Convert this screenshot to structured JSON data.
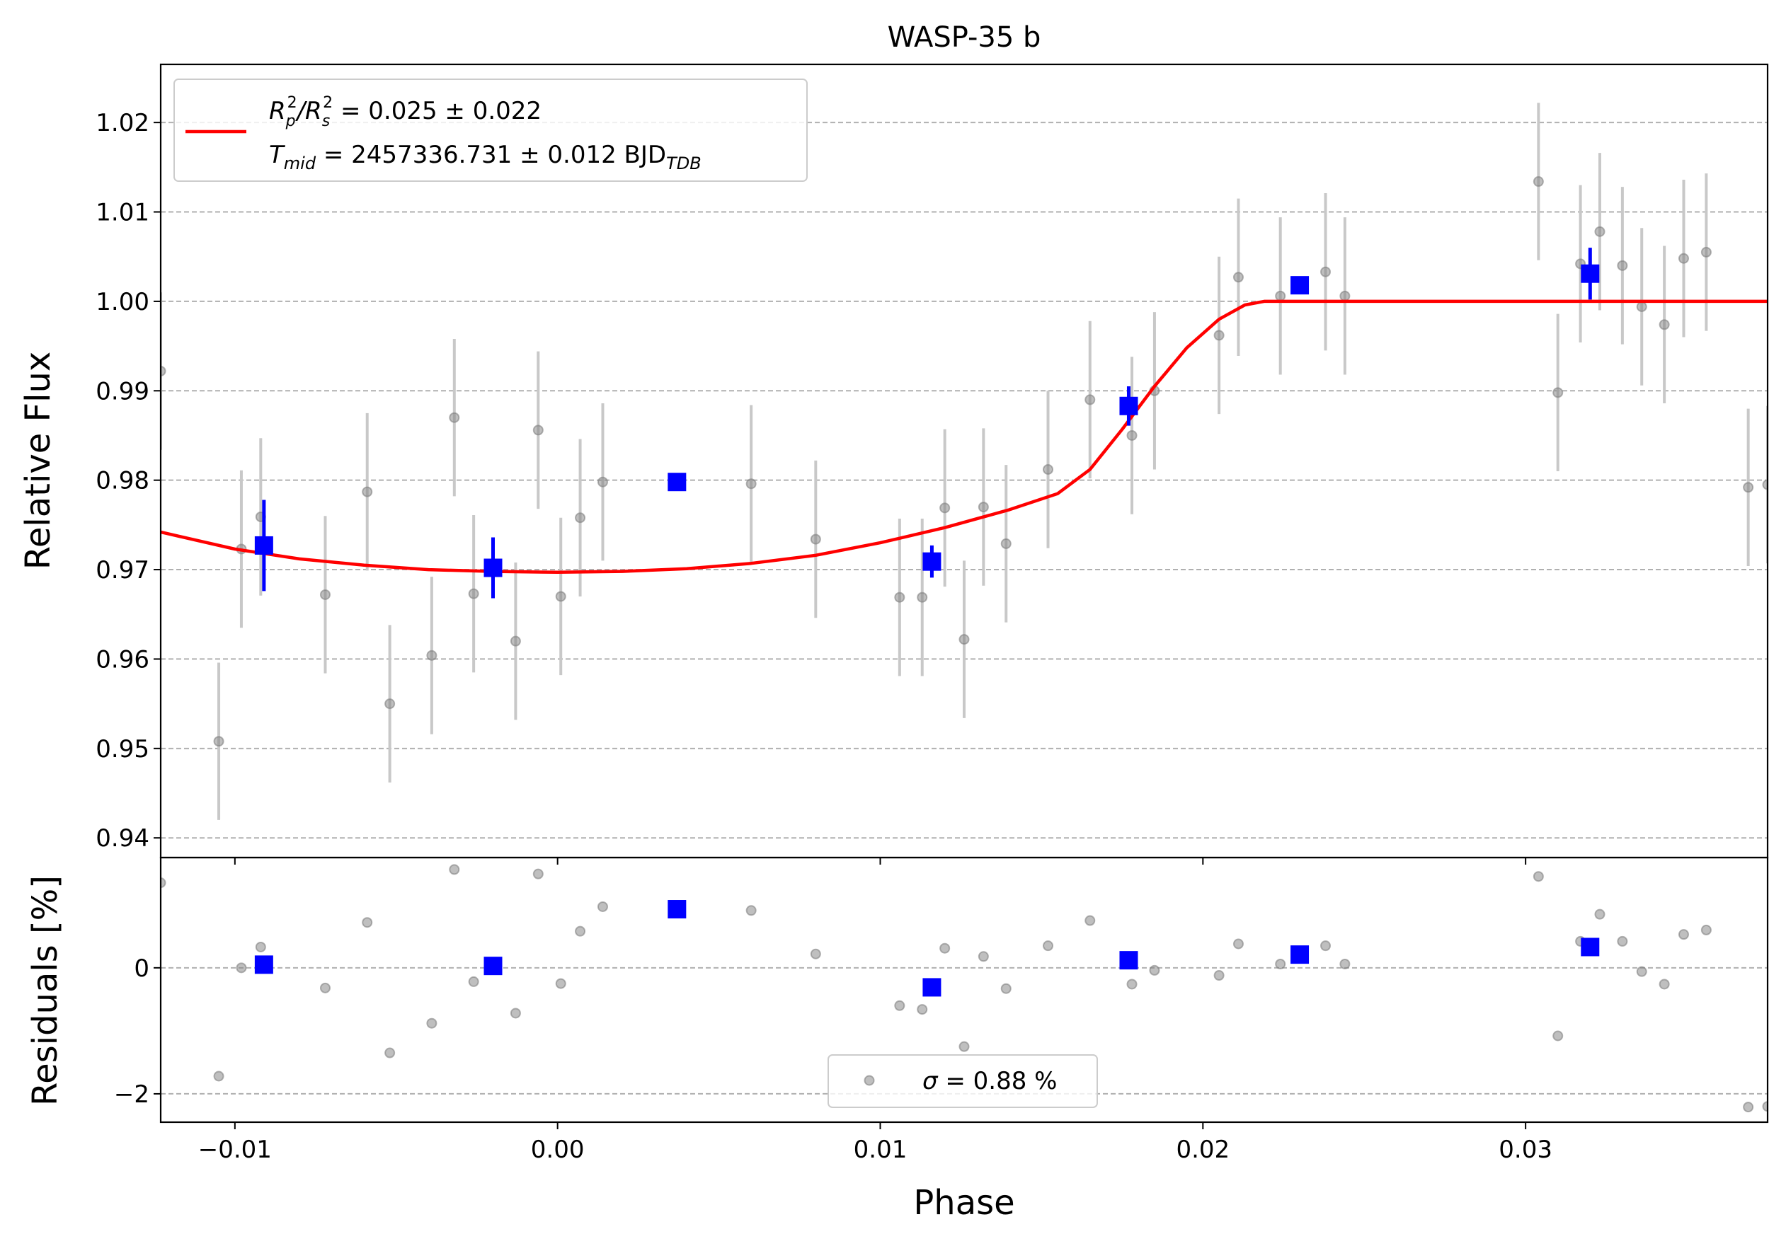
{
  "chart_data": [
    {
      "type": "scatter",
      "title": "WASP-35 b",
      "xlabel": "",
      "ylabel": "Relative Flux",
      "xlim": [
        -0.0123,
        0.0375
      ],
      "ylim": [
        0.9378,
        1.0265
      ],
      "xticks": [
        -0.01,
        0.0,
        0.01,
        0.02,
        0.03
      ],
      "yticks": [
        0.94,
        0.95,
        0.96,
        0.97,
        0.98,
        0.99,
        1.0,
        1.01,
        1.02
      ],
      "ytick_labels": [
        "0.94",
        "0.95",
        "0.96",
        "0.97",
        "0.98",
        "0.99",
        "1.00",
        "1.01",
        "1.02"
      ],
      "grid": "y-dashed",
      "legend_position": "top-left",
      "legend": {
        "line1": {
          "prefix": "R",
          "sub1": "p",
          "sup1": "2",
          "slash": "/R",
          "sub2": "s",
          "sup2": "2",
          "suffix": " = 0.025 ± 0.022"
        },
        "line2": {
          "prefix": "T",
          "sub1": "mid",
          "suffix": " = 2457336.731 ± 0.012 BJD",
          "sub2": "TDB"
        }
      },
      "colors": {
        "data": "#808080",
        "errorbar": "#c8c8c8",
        "model": "#ff0000",
        "binned": "#0000ff"
      },
      "data_points": [
        [
          -0.0123,
          0.9922
        ],
        [
          -0.0105,
          0.9508
        ],
        [
          -0.0098,
          0.9723
        ],
        [
          -0.0092,
          0.9759
        ],
        [
          -0.0072,
          0.9672
        ],
        [
          -0.0059,
          0.9787
        ],
        [
          -0.0052,
          0.955
        ],
        [
          -0.0039,
          0.9604
        ],
        [
          -0.0032,
          0.987
        ],
        [
          -0.0026,
          0.9673
        ],
        [
          -0.0013,
          0.962
        ],
        [
          -0.0006,
          0.9856
        ],
        [
          0.0001,
          0.967
        ],
        [
          0.0007,
          0.9758
        ],
        [
          0.0014,
          0.9798
        ],
        [
          0.006,
          0.9796
        ],
        [
          0.008,
          0.9734
        ],
        [
          0.0106,
          0.9669
        ],
        [
          0.0113,
          0.9669
        ],
        [
          0.012,
          0.9769
        ],
        [
          0.0126,
          0.9622
        ],
        [
          0.0132,
          0.977
        ],
        [
          0.0139,
          0.9729
        ],
        [
          0.0152,
          0.9812
        ],
        [
          0.0165,
          0.989
        ],
        [
          0.0178,
          0.985
        ],
        [
          0.0185,
          0.99
        ],
        [
          0.0205,
          0.9962
        ],
        [
          0.0211,
          1.0027
        ],
        [
          0.0224,
          1.0006
        ],
        [
          0.0238,
          1.0033
        ],
        [
          0.0244,
          1.0006
        ],
        [
          0.0304,
          1.0134
        ],
        [
          0.031,
          0.9898
        ],
        [
          0.0317,
          1.0042
        ],
        [
          0.0323,
          1.0078
        ],
        [
          0.033,
          1.004
        ],
        [
          0.0336,
          0.9994
        ],
        [
          0.0343,
          0.9974
        ],
        [
          0.0349,
          1.0048
        ],
        [
          0.0356,
          1.0055
        ],
        [
          0.0369,
          0.9792
        ],
        [
          0.0375,
          0.9795
        ]
      ],
      "data_error": 0.0088,
      "binned_points": [
        [
          -0.0091,
          0.9727,
          0.0051
        ],
        [
          -0.002,
          0.9702,
          0.0034
        ],
        [
          0.0037,
          0.9798,
          0.0
        ],
        [
          0.0116,
          0.9709,
          0.0018
        ],
        [
          0.0177,
          0.9883,
          0.0022
        ],
        [
          0.023,
          1.0018,
          0.0
        ],
        [
          0.032,
          1.0031,
          0.0029
        ]
      ],
      "model": {
        "x": [
          -0.0123,
          -0.01,
          -0.008,
          -0.006,
          -0.004,
          -0.002,
          0.0,
          0.002,
          0.004,
          0.006,
          0.008,
          0.01,
          0.012,
          0.014,
          0.0155,
          0.0165,
          0.0175,
          0.0185,
          0.0195,
          0.0205,
          0.0213,
          0.0219,
          0.025,
          0.03,
          0.0375
        ],
        "y": [
          0.9742,
          0.9723,
          0.9712,
          0.9705,
          0.97,
          0.9698,
          0.9697,
          0.9698,
          0.9701,
          0.9707,
          0.9716,
          0.973,
          0.9747,
          0.9767,
          0.9785,
          0.9812,
          0.9857,
          0.9905,
          0.9948,
          0.998,
          0.9996,
          1.0,
          1.0,
          1.0,
          1.0
        ]
      }
    },
    {
      "type": "scatter",
      "xlabel": "Phase",
      "ylabel": "Residuals [%]",
      "xlim": [
        -0.0123,
        0.0375
      ],
      "ylim": [
        -2.45,
        1.75
      ],
      "xticks": [
        -0.01,
        0.0,
        0.01,
        0.02,
        0.03
      ],
      "xtick_labels": [
        "−0.01",
        "0.00",
        "0.01",
        "0.02",
        "0.03"
      ],
      "yticks": [
        -2,
        0
      ],
      "ytick_labels": [
        "−2",
        "0"
      ],
      "grid": "y-dashed",
      "legend_position": "bottom-center",
      "legend": {
        "prefix": "σ",
        "suffix": " = 0.88 %"
      },
      "residual_points": [
        [
          -0.0123,
          1.35
        ],
        [
          -0.0105,
          -1.72
        ],
        [
          -0.0098,
          0.0
        ],
        [
          -0.0092,
          0.33
        ],
        [
          -0.0072,
          -0.32
        ],
        [
          -0.0059,
          0.72
        ],
        [
          -0.0052,
          -1.35
        ],
        [
          -0.0039,
          -0.88
        ],
        [
          -0.0032,
          1.56
        ],
        [
          -0.0026,
          -0.22
        ],
        [
          -0.0013,
          -0.72
        ],
        [
          -0.0006,
          1.49
        ],
        [
          0.0001,
          -0.25
        ],
        [
          0.0007,
          0.58
        ],
        [
          0.0014,
          0.97
        ],
        [
          0.006,
          0.91
        ],
        [
          0.008,
          0.22
        ],
        [
          0.0106,
          -0.6
        ],
        [
          0.0113,
          -0.66
        ],
        [
          0.012,
          0.31
        ],
        [
          0.0126,
          -1.25
        ],
        [
          0.0132,
          0.18
        ],
        [
          0.0139,
          -0.33
        ],
        [
          0.0152,
          0.35
        ],
        [
          0.0165,
          0.75
        ],
        [
          0.0178,
          -0.26
        ],
        [
          0.0185,
          -0.04
        ],
        [
          0.0205,
          -0.12
        ],
        [
          0.0211,
          0.38
        ],
        [
          0.0224,
          0.06
        ],
        [
          0.0238,
          0.35
        ],
        [
          0.0244,
          0.06
        ],
        [
          0.0304,
          1.45
        ],
        [
          0.031,
          -1.08
        ],
        [
          0.0317,
          0.42
        ],
        [
          0.0323,
          0.85
        ],
        [
          0.033,
          0.42
        ],
        [
          0.0336,
          -0.06
        ],
        [
          0.0343,
          -0.26
        ],
        [
          0.0349,
          0.53
        ],
        [
          0.0356,
          0.6
        ],
        [
          0.0369,
          -2.21
        ],
        [
          0.0375,
          -2.2
        ]
      ],
      "binned_residuals": [
        [
          -0.0091,
          0.05
        ],
        [
          -0.002,
          0.03
        ],
        [
          0.0037,
          0.93
        ],
        [
          0.0116,
          -0.31
        ],
        [
          0.0177,
          0.12
        ],
        [
          0.023,
          0.21
        ],
        [
          0.032,
          0.33
        ]
      ]
    }
  ]
}
